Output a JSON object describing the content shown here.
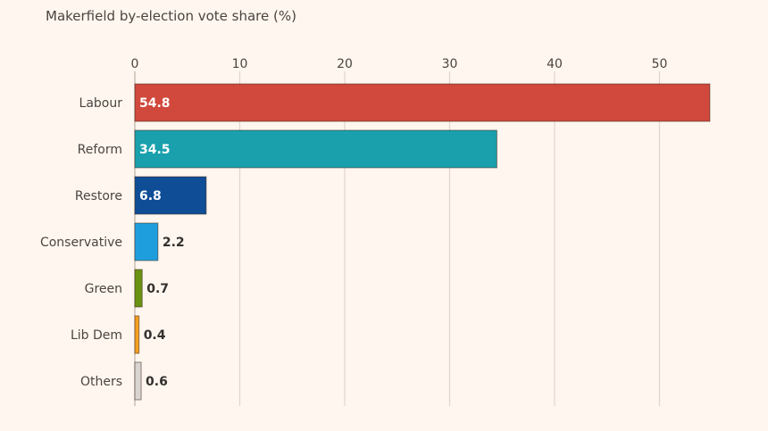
{
  "chart_data": {
    "type": "bar",
    "orientation": "horizontal",
    "title": "Makerfield by-election vote share (%)",
    "xlabel": "",
    "ylabel": "",
    "xlim": [
      0,
      55
    ],
    "ticks": [
      0,
      10,
      20,
      30,
      40,
      50
    ],
    "grid": true,
    "categories": [
      "Labour",
      "Reform",
      "Restore",
      "Conservative",
      "Green",
      "Lib Dem",
      "Others"
    ],
    "values": [
      54.8,
      34.5,
      6.8,
      2.2,
      0.7,
      0.4,
      0.6
    ],
    "value_labels": [
      "54.8",
      "34.5",
      "6.8",
      "2.2",
      "0.7",
      "0.4",
      "0.6"
    ],
    "colors": [
      "#d1483c",
      "#1aa0ad",
      "#0f4e97",
      "#1f9ede",
      "#6a9213",
      "#f59e20",
      "#d8d4d1"
    ]
  }
}
